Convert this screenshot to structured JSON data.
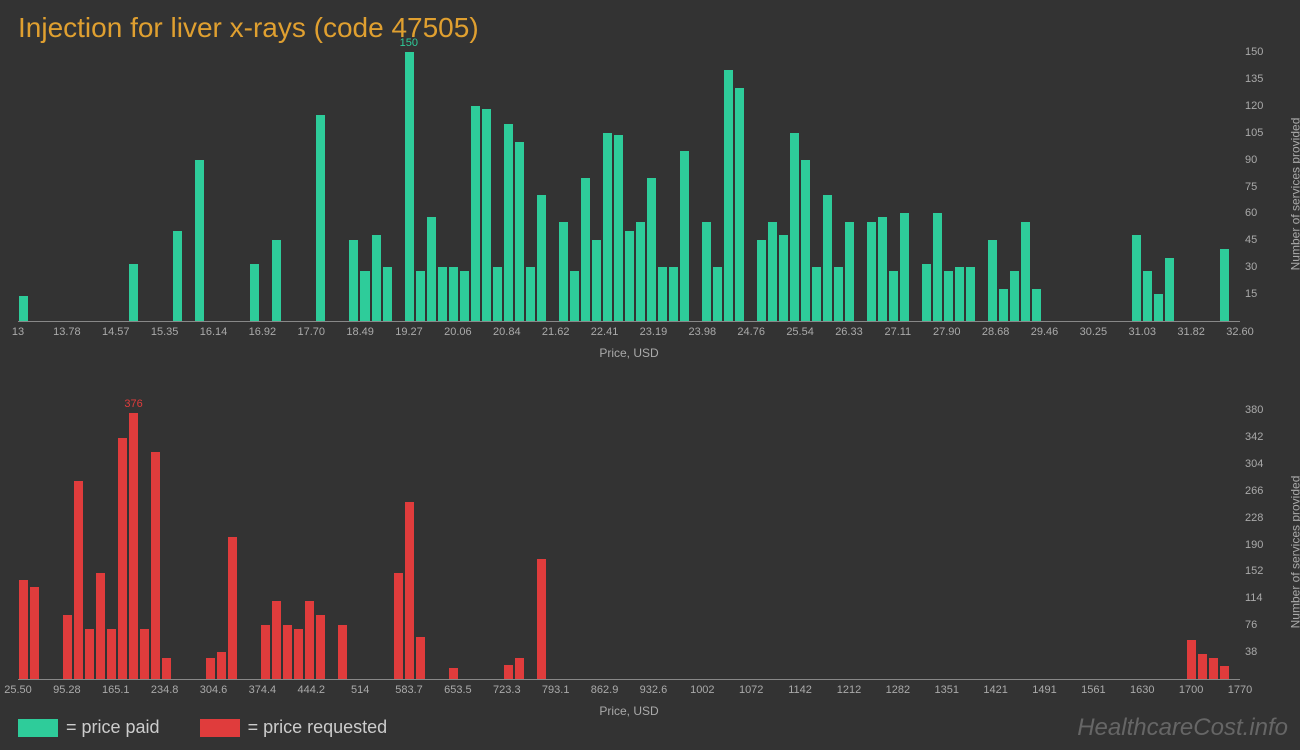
{
  "title": "Injection for liver x-rays (code 47505)",
  "watermark": "HealthcareCost.info",
  "x_axis_label": "Price, USD",
  "y_axis_label": "Number of services provided",
  "legend": {
    "paid": "= price paid",
    "requested": "= price requested"
  },
  "colors": {
    "background": "#333333",
    "title": "#e0a030",
    "green": "#2ecc9a",
    "red": "#e03c3c",
    "axis_text": "#aaaaaa",
    "watermark": "#666666"
  },
  "chart1": {
    "type": "bar",
    "bar_color": "#2ecc9a",
    "max_value": 150,
    "max_label": "150",
    "x_ticks": [
      "13",
      "13.78",
      "14.57",
      "15.35",
      "16.14",
      "16.92",
      "17.70",
      "18.49",
      "19.27",
      "20.06",
      "20.84",
      "21.62",
      "22.41",
      "23.19",
      "23.98",
      "24.76",
      "25.54",
      "26.33",
      "27.11",
      "27.90",
      "28.68",
      "29.46",
      "30.25",
      "31.03",
      "31.82",
      "32.60"
    ],
    "y_ticks": [
      15,
      30,
      45,
      60,
      75,
      90,
      105,
      120,
      135,
      150
    ],
    "ylim": [
      0,
      150
    ],
    "values": [
      14,
      0,
      0,
      0,
      0,
      0,
      0,
      0,
      0,
      0,
      32,
      0,
      0,
      0,
      50,
      0,
      90,
      0,
      0,
      0,
      0,
      32,
      0,
      45,
      0,
      0,
      0,
      115,
      0,
      0,
      45,
      28,
      48,
      30,
      0,
      150,
      28,
      58,
      30,
      30,
      28,
      120,
      118,
      30,
      110,
      100,
      30,
      70,
      0,
      55,
      28,
      80,
      45,
      105,
      104,
      50,
      55,
      80,
      30,
      30,
      95,
      0,
      55,
      30,
      140,
      130,
      0,
      45,
      55,
      48,
      105,
      90,
      30,
      70,
      30,
      55,
      0,
      55,
      58,
      28,
      60,
      0,
      32,
      60,
      28,
      30,
      30,
      0,
      45,
      18,
      28,
      55,
      18,
      0,
      0,
      0,
      0,
      0,
      0,
      0,
      0,
      48,
      28,
      15,
      35,
      0,
      0,
      0,
      0,
      40,
      0
    ]
  },
  "chart2": {
    "type": "bar",
    "bar_color": "#e03c3c",
    "max_value": 380,
    "max_label": "376",
    "x_ticks": [
      "25.50",
      "95.28",
      "165.1",
      "234.8",
      "304.6",
      "374.4",
      "444.2",
      "514",
      "583.7",
      "653.5",
      "723.3",
      "793.1",
      "862.9",
      "932.6",
      "1002",
      "1072",
      "1142",
      "1212",
      "1282",
      "1351",
      "1421",
      "1491",
      "1561",
      "1630",
      "1700",
      "1770"
    ],
    "y_ticks": [
      38,
      76,
      114,
      152,
      190,
      228,
      266,
      304,
      342,
      380
    ],
    "ylim": [
      0,
      380
    ],
    "values": [
      140,
      130,
      0,
      0,
      90,
      280,
      70,
      150,
      70,
      340,
      376,
      70,
      320,
      30,
      0,
      0,
      0,
      30,
      38,
      200,
      0,
      0,
      76,
      110,
      76,
      70,
      110,
      90,
      0,
      76,
      0,
      0,
      0,
      0,
      150,
      250,
      60,
      0,
      0,
      15,
      0,
      0,
      0,
      0,
      20,
      30,
      0,
      170,
      0,
      0,
      0,
      0,
      0,
      0,
      0,
      0,
      0,
      0,
      0,
      0,
      0,
      0,
      0,
      0,
      0,
      0,
      0,
      0,
      0,
      0,
      0,
      0,
      0,
      0,
      0,
      0,
      0,
      0,
      0,
      0,
      0,
      0,
      0,
      0,
      0,
      0,
      0,
      0,
      0,
      0,
      0,
      0,
      0,
      0,
      0,
      0,
      0,
      0,
      0,
      0,
      0,
      0,
      0,
      0,
      0,
      0,
      55,
      35,
      30,
      18,
      0
    ]
  }
}
